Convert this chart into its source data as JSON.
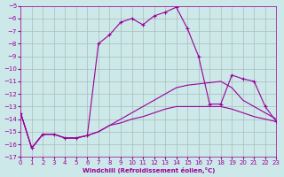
{
  "xlabel": "Windchill (Refroidissement éolien,°C)",
  "background_color": "#cce8e8",
  "grid_color": "#aabcbc",
  "line_color": "#990099",
  "xlim": [
    0,
    23
  ],
  "ylim": [
    -17,
    -5
  ],
  "xticks": [
    0,
    1,
    2,
    3,
    4,
    5,
    6,
    7,
    8,
    9,
    10,
    11,
    12,
    13,
    14,
    15,
    16,
    17,
    18,
    19,
    20,
    21,
    22,
    23
  ],
  "yticks": [
    -5,
    -6,
    -7,
    -8,
    -9,
    -10,
    -11,
    -12,
    -13,
    -14,
    -15,
    -16,
    -17
  ],
  "series": [
    {
      "x": [
        0,
        1,
        2,
        3,
        4,
        5,
        6,
        7,
        8,
        9,
        10,
        11,
        12,
        13,
        14,
        15,
        16,
        17,
        18,
        19,
        20,
        21,
        22,
        23
      ],
      "y": [
        -13.5,
        -16.3,
        -15.2,
        -15.2,
        -15.5,
        -15.5,
        -15.3,
        -8.0,
        -7.3,
        -6.3,
        -6.0,
        -6.5,
        -5.8,
        -5.5,
        -5.1,
        -6.8,
        -9.0,
        -12.8,
        -12.8,
        -10.5,
        -10.8,
        -11.0,
        -13.0,
        -14.2
      ],
      "marker": "+"
    },
    {
      "x": [
        0,
        1,
        2,
        3,
        4,
        5,
        6,
        7,
        8,
        9,
        10,
        11,
        12,
        13,
        14,
        15,
        16,
        17,
        18,
        19,
        20,
        21,
        22,
        23
      ],
      "y": [
        -13.5,
        -16.3,
        -15.2,
        -15.2,
        -15.5,
        -15.5,
        -15.3,
        -15.0,
        -14.5,
        -14.0,
        -13.5,
        -13.0,
        -12.5,
        -12.0,
        -11.5,
        -11.3,
        -11.2,
        -11.1,
        -11.0,
        -11.5,
        -12.5,
        -13.0,
        -13.5,
        -14.0
      ],
      "marker": null
    },
    {
      "x": [
        0,
        1,
        2,
        3,
        4,
        5,
        6,
        7,
        8,
        9,
        10,
        11,
        12,
        13,
        14,
        15,
        16,
        17,
        18,
        19,
        20,
        21,
        22,
        23
      ],
      "y": [
        -13.5,
        -16.3,
        -15.2,
        -15.2,
        -15.5,
        -15.5,
        -15.3,
        -15.0,
        -14.5,
        -14.3,
        -14.0,
        -13.8,
        -13.5,
        -13.2,
        -13.0,
        -13.0,
        -13.0,
        -13.0,
        -13.0,
        -13.2,
        -13.5,
        -13.8,
        -14.0,
        -14.2
      ],
      "marker": null
    }
  ]
}
